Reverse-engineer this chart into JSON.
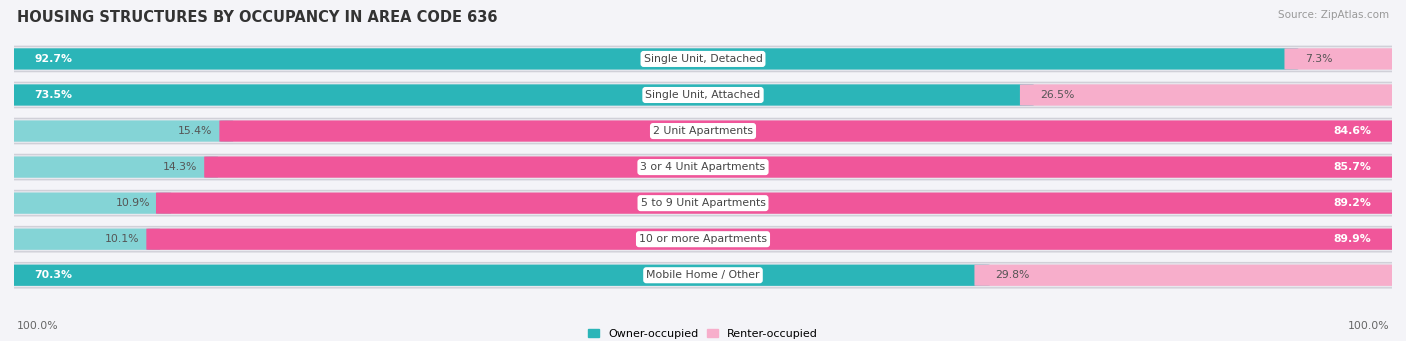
{
  "title": "HOUSING STRUCTURES BY OCCUPANCY IN AREA CODE 636",
  "source": "Source: ZipAtlas.com",
  "categories": [
    "Single Unit, Detached",
    "Single Unit, Attached",
    "2 Unit Apartments",
    "3 or 4 Unit Apartments",
    "5 to 9 Unit Apartments",
    "10 or more Apartments",
    "Mobile Home / Other"
  ],
  "owner_pct": [
    92.7,
    73.5,
    15.4,
    14.3,
    10.9,
    10.1,
    70.3
  ],
  "renter_pct": [
    7.3,
    26.5,
    84.6,
    85.7,
    89.2,
    89.9,
    29.8
  ],
  "owner_dark": "#2BB5B8",
  "owner_light": "#84D4D6",
  "renter_dark": "#F0569A",
  "renter_light": "#F7AECB",
  "pill_color": "#E8E8EE",
  "pill_border": "#D0D0D8",
  "bg_color": "#F4F4F8",
  "title_fontsize": 10.5,
  "source_fontsize": 7.5,
  "label_fontsize": 7.8,
  "pct_fontsize": 7.8,
  "bar_height": 0.58,
  "legend_fontsize": 8.0
}
